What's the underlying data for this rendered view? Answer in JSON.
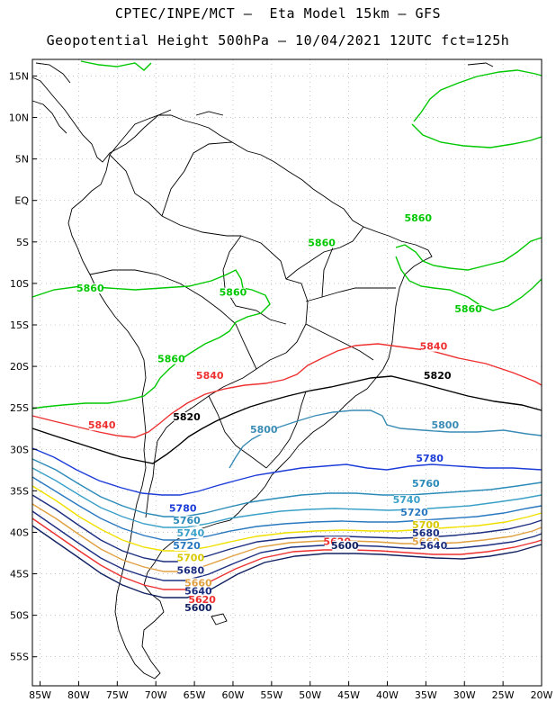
{
  "header": {
    "line1": "CPTEC/INPE/MCT –  Eta Model 15km – GFS",
    "line2": "Geopotential Height 500hPa – 10/04/2021 12UTC fct=125h"
  },
  "axes": {
    "lat_labels": [
      "15N",
      "10N",
      "5N",
      "EQ",
      "5S",
      "10S",
      "15S",
      "20S",
      "25S",
      "30S",
      "35S",
      "40S",
      "45S",
      "50S",
      "55S"
    ],
    "lon_labels": [
      "85W",
      "80W",
      "75W",
      "70W",
      "65W",
      "60W",
      "55W",
      "50W",
      "45W",
      "40W",
      "35W",
      "30W",
      "25W",
      "20W"
    ],
    "lon_range": [
      -86,
      -20
    ],
    "lat_range": [
      17,
      -58.5
    ],
    "grid": true
  },
  "map_data": {
    "type": "contour",
    "variable": "Geopotential Height 500hPa",
    "levels": [
      {
        "value": "5860",
        "color": "#00c800",
        "label_points": [
          [
            -78.5,
            -11
          ],
          [
            -60,
            -11.5
          ],
          [
            -48.5,
            -5.5
          ],
          [
            -68,
            -19.5
          ],
          [
            -36,
            -2.5
          ],
          [
            -29.5,
            -13.5
          ]
        ]
      },
      {
        "value": "5840",
        "color": "#ee3030",
        "label_points": [
          [
            -77,
            -27.5
          ],
          [
            -63,
            -21.5
          ],
          [
            -34,
            -18
          ]
        ]
      },
      {
        "value": "5820",
        "color": "#000000",
        "label_points": [
          [
            -66,
            -26.5
          ],
          [
            -33.5,
            -21.5
          ]
        ]
      },
      {
        "value": "5800",
        "color": "#3a8cb5",
        "label_points": [
          [
            -56,
            -28
          ],
          [
            -32.5,
            -27.5
          ]
        ]
      },
      {
        "value": "5780",
        "color": "#1c3cd8",
        "label_points": [
          [
            -66.5,
            -37.5
          ],
          [
            -34.5,
            -31.5
          ]
        ]
      },
      {
        "value": "5760",
        "color": "#2a8ab8",
        "label_points": [
          [
            -66,
            -39
          ],
          [
            -35,
            -34.5
          ]
        ]
      },
      {
        "value": "5740",
        "color": "#3aa0c8",
        "label_points": [
          [
            -65.5,
            -40.5
          ],
          [
            -37.5,
            -36.5
          ]
        ]
      },
      {
        "value": "5720",
        "color": "#2878c0",
        "label_points": [
          [
            -66,
            -42
          ],
          [
            -36.5,
            -38
          ]
        ]
      },
      {
        "value": "5700",
        "color": "#f0f000",
        "label_points": [
          [
            -65.5,
            -43.5
          ],
          [
            -35,
            -39.5
          ]
        ]
      },
      {
        "value": "5680",
        "color": "#1c2e80",
        "label_points": [
          [
            -65.5,
            -45
          ],
          [
            -35,
            -40.5
          ]
        ]
      },
      {
        "value": "5660",
        "color": "#e0a040",
        "label_points": [
          [
            -64.5,
            -46.5
          ],
          [
            -35,
            -41.5
          ]
        ]
      },
      {
        "value": "5640",
        "color": "#1c2e80",
        "label_points": [
          [
            -64.5,
            -47.5
          ],
          [
            -34,
            -42
          ]
        ]
      },
      {
        "value": "5620",
        "color": "#ee3030",
        "label_points": [
          [
            -64,
            -48.5
          ],
          [
            -46.5,
            -41.5
          ]
        ]
      },
      {
        "value": "5600",
        "color": "#102060",
        "label_points": [
          [
            -64.5,
            -49.5
          ],
          [
            -45.5,
            -42
          ]
        ]
      }
    ]
  },
  "colors": {
    "land_border": "#000000",
    "grid": "#a0a0a0",
    "frame": "#000000"
  }
}
